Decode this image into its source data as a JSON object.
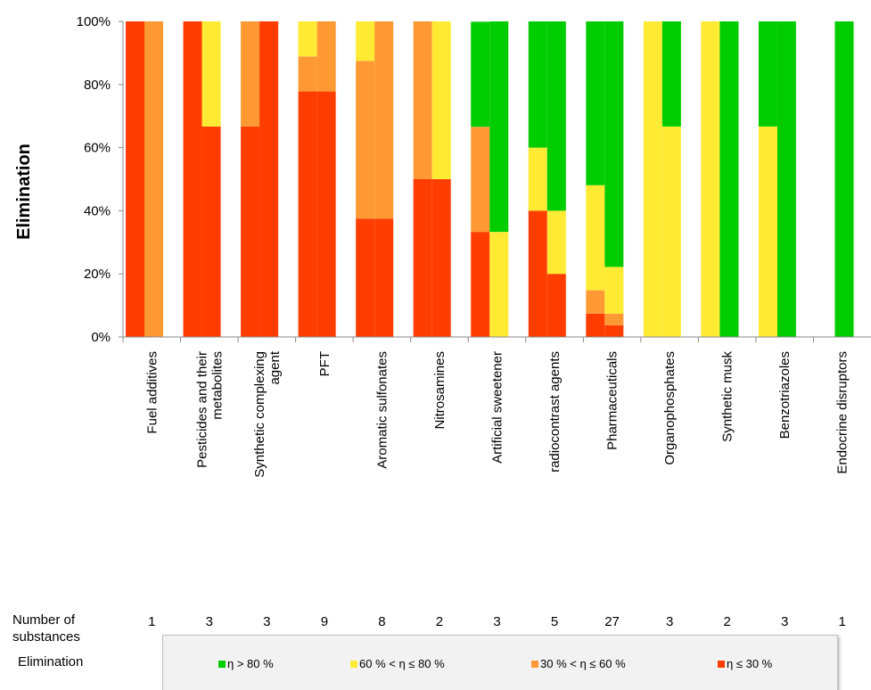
{
  "chart_data": {
    "type": "bar",
    "ylabel": "Elimination",
    "ylim": [
      0,
      100
    ],
    "yticks": [
      "0%",
      "20%",
      "40%",
      "60%",
      "80%",
      "100%"
    ],
    "stacking": "stacked to 100%, two bars per category",
    "categories": [
      {
        "label": "Fuel additives",
        "lines": [
          "Fuel additives"
        ],
        "count": "1",
        "bars": [
          {
            "gt80": 0,
            "60to80": 0,
            "30to60": 0,
            "le30": 100
          },
          {
            "gt80": 0,
            "60to80": 0,
            "30to60": 100,
            "le30": 0
          }
        ]
      },
      {
        "label": "Pesticides and their metabolites",
        "lines": [
          "Pesticides and their",
          "metabolites"
        ],
        "count": "3",
        "bars": [
          {
            "gt80": 0,
            "60to80": 0,
            "30to60": 0,
            "le30": 100
          },
          {
            "gt80": 0,
            "60to80": 33.3,
            "30to60": 0,
            "le30": 66.7
          }
        ]
      },
      {
        "label": "Synthetic complexing agent",
        "lines": [
          "Synthetic complexing",
          "agent"
        ],
        "count": "3",
        "bars": [
          {
            "gt80": 0,
            "60to80": 0,
            "30to60": 33.3,
            "le30": 66.7
          },
          {
            "gt80": 0,
            "60to80": 0,
            "30to60": 0,
            "le30": 100
          }
        ]
      },
      {
        "label": "PFT",
        "lines": [
          "PFT"
        ],
        "count": "9",
        "bars": [
          {
            "gt80": 0,
            "60to80": 11.1,
            "30to60": 11.1,
            "le30": 77.8
          },
          {
            "gt80": 0,
            "60to80": 0,
            "30to60": 22.2,
            "le30": 77.8
          }
        ]
      },
      {
        "label": "Aromatic sulfonates",
        "lines": [
          "Aromatic sulfonates"
        ],
        "count": "8",
        "bars": [
          {
            "gt80": 0,
            "60to80": 12.5,
            "30to60": 50,
            "le30": 37.5
          },
          {
            "gt80": 0,
            "60to80": 0,
            "30to60": 62.5,
            "le30": 37.5
          }
        ]
      },
      {
        "label": "Nitrosamines",
        "lines": [
          "Nitrosamines"
        ],
        "count": "2",
        "bars": [
          {
            "gt80": 0,
            "60to80": 0,
            "30to60": 50,
            "le30": 50
          },
          {
            "gt80": 0,
            "60to80": 50,
            "30to60": 0,
            "le30": 50
          }
        ]
      },
      {
        "label": "Artificial sweetener",
        "lines": [
          "Artificial sweetener"
        ],
        "count": "3",
        "bars": [
          {
            "gt80": 33.3,
            "60to80": 0,
            "30to60": 33.3,
            "le30": 33.3
          },
          {
            "gt80": 66.7,
            "60to80": 33.3,
            "30to60": 0,
            "le30": 0
          }
        ]
      },
      {
        "label": "radiocontrast agents",
        "lines": [
          "radiocontrast agents"
        ],
        "count": "5",
        "bars": [
          {
            "gt80": 40,
            "60to80": 20,
            "30to60": 0,
            "le30": 40
          },
          {
            "gt80": 60,
            "60to80": 20,
            "30to60": 0,
            "le30": 20
          }
        ]
      },
      {
        "label": "Pharmaceuticals",
        "lines": [
          "Pharmaceuticals"
        ],
        "count": "27",
        "bars": [
          {
            "gt80": 51.9,
            "60to80": 33.3,
            "30to60": 7.4,
            "le30": 7.4
          },
          {
            "gt80": 77.8,
            "60to80": 14.8,
            "30to60": 3.7,
            "le30": 3.7
          }
        ]
      },
      {
        "label": "Organophosphates",
        "lines": [
          "Organophosphates"
        ],
        "count": "3",
        "bars": [
          {
            "gt80": 0,
            "60to80": 100,
            "30to60": 0,
            "le30": 0
          },
          {
            "gt80": 33.3,
            "60to80": 66.7,
            "30to60": 0,
            "le30": 0
          }
        ]
      },
      {
        "label": "Synthetic musk",
        "lines": [
          "Synthetic musk"
        ],
        "count": "2",
        "bars": [
          {
            "gt80": 0,
            "60to80": 100,
            "30to60": 0,
            "le30": 0
          },
          {
            "gt80": 100,
            "60to80": 0,
            "30to60": 0,
            "le30": 0
          }
        ]
      },
      {
        "label": "Benzotriazoles",
        "lines": [
          "Benzotriazoles"
        ],
        "count": "3",
        "bars": [
          {
            "gt80": 33.3,
            "60to80": 66.7,
            "30to60": 0,
            "le30": 0
          },
          {
            "gt80": 100,
            "60to80": 0,
            "30to60": 0,
            "le30": 0
          }
        ]
      },
      {
        "label": "Endocrine disruptors",
        "lines": [
          "Endocrine disruptors"
        ],
        "count": "1",
        "bars": [
          {
            "gt80": 0,
            "60to80": 0,
            "30to60": 0,
            "le30": 0
          },
          {
            "gt80": 100,
            "60to80": 0,
            "30to60": 0,
            "le30": 0
          }
        ]
      }
    ],
    "segments": [
      {
        "key": "le30",
        "label": "η ≤ 30 %",
        "color": "#ff3d00"
      },
      {
        "key": "30to60",
        "label": "30 % < η ≤ 60 %",
        "color": "#ff9933"
      },
      {
        "key": "60to80",
        "label": "60 % < η ≤ 80 %",
        "color": "#ffeb33"
      },
      {
        "key": "gt80",
        "label": "η > 80 %",
        "color": "#00cc00"
      }
    ],
    "grid": false,
    "legend_position": "bottom"
  },
  "rows": {
    "count_label": "Number of\nsubstances",
    "legend_label": "Elimination"
  },
  "legend": [
    {
      "label": "η > 80 %",
      "color": "#00cc00"
    },
    {
      "label": "60 % < η ≤ 80 %",
      "color": "#ffeb33"
    },
    {
      "label": "30 % < η ≤ 60 %",
      "color": "#ff9933"
    },
    {
      "label": "η ≤ 30 %",
      "color": "#ff3d00"
    }
  ]
}
